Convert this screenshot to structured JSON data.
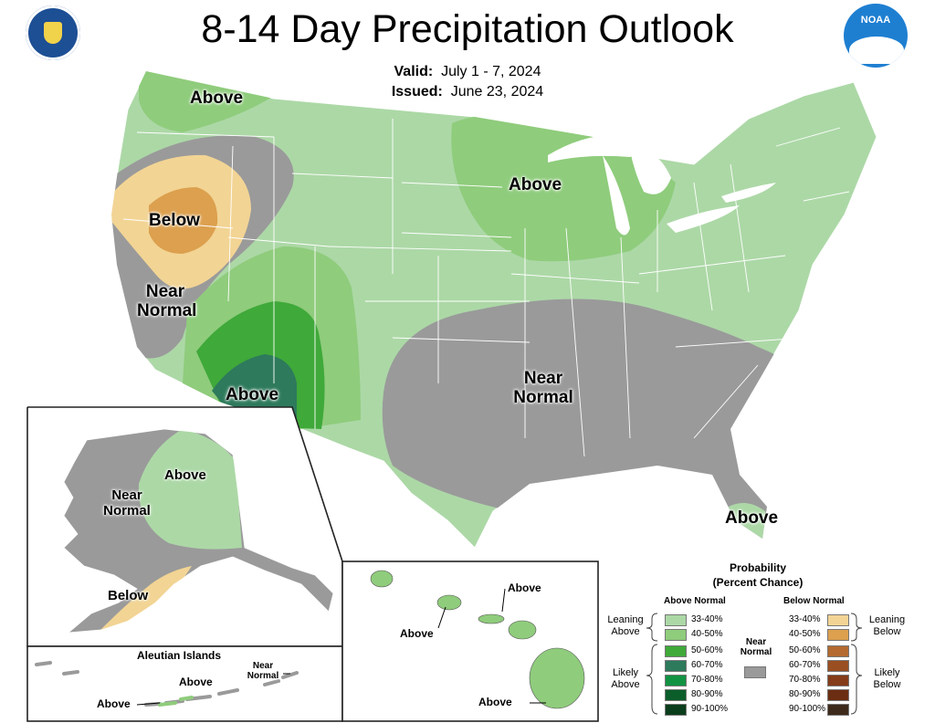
{
  "title": "8-14 Day Precipitation Outlook",
  "valid_label": "Valid:",
  "valid_value": "July 1 - 7, 2024",
  "issued_label": "Issued:",
  "issued_value": "June 23, 2024",
  "logos": {
    "left": "department-of-commerce-seal",
    "right": "noaa-logo"
  },
  "colors": {
    "above_33_40": "#acd8a6",
    "above_40_50": "#8fcc7c",
    "above_50_60": "#3fa93a",
    "above_60_70": "#2e7a5c",
    "above_70_80": "#129243",
    "above_80_90": "#0b5e2a",
    "above_90_100": "#0a3d1b",
    "near_normal": "#9a9a9a",
    "below_33_40": "#f2d494",
    "below_40_50": "#dca04e",
    "below_50_60": "#b46a30",
    "below_60_70": "#9a4f22",
    "below_70_80": "#843c1a",
    "below_80_90": "#6c2e12",
    "below_90_100": "#3e2a1a",
    "water": "#ffffff",
    "boundary": "#ffffff"
  },
  "map_labels": {
    "conus_nw_above": "Above",
    "conus_west_below": "Below",
    "conus_west_near": "Near",
    "conus_west_normal": "Normal",
    "conus_sw_above": "Above",
    "conus_ne_above": "Above",
    "conus_south_near": "Near",
    "conus_south_normal": "Normal",
    "conus_fl_above": "Above",
    "ak_above": "Above",
    "ak_near": "Near",
    "ak_normal": "Normal",
    "ak_below": "Below",
    "aleutian_title": "Aleutian Islands",
    "aleutian_above_1": "Above",
    "aleutian_above_2": "Above",
    "aleutian_near": "Near",
    "aleutian_normal": "Normal",
    "hi_above_1": "Above",
    "hi_above_2": "Above",
    "hi_above_3": "Above"
  },
  "legend": {
    "title_1": "Probability",
    "title_2": "(Percent Chance)",
    "above_normal_header": "Above Normal",
    "below_normal_header": "Below Normal",
    "near_normal_line1": "Near",
    "near_normal_line2": "Normal",
    "leaning_above_1": "Leaning",
    "leaning_above_2": "Above",
    "likely_above_1": "Likely",
    "likely_above_2": "Above",
    "leaning_below_1": "Leaning",
    "leaning_below_2": "Below",
    "likely_below_1": "Likely",
    "likely_below_2": "Below",
    "above_items": [
      "33-40%",
      "40-50%",
      "50-60%",
      "60-70%",
      "70-80%",
      "80-90%",
      "90-100%"
    ],
    "below_items": [
      "33-40%",
      "40-50%",
      "50-60%",
      "60-70%",
      "70-80%",
      "80-90%",
      "90-100%"
    ]
  }
}
